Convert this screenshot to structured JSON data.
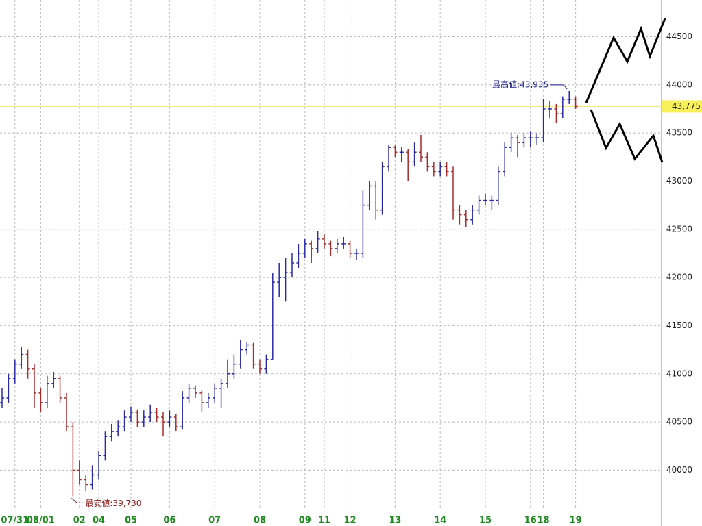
{
  "chart_data": {
    "type": "ohlc",
    "categories": [
      null,
      null,
      "07/31",
      null,
      null,
      null,
      "08/01",
      null,
      null,
      null,
      null,
      null,
      "02",
      null,
      null,
      "04",
      null,
      null,
      null,
      null,
      "05",
      null,
      null,
      null,
      null,
      null,
      "06",
      null,
      null,
      null,
      null,
      null,
      null,
      "07",
      null,
      null,
      null,
      null,
      null,
      null,
      "08",
      null,
      null,
      null,
      null,
      null,
      null,
      "09",
      null,
      null,
      "11",
      null,
      null,
      null,
      "12",
      null,
      null,
      null,
      null,
      null,
      null,
      "13",
      null,
      null,
      null,
      null,
      null,
      null,
      "14",
      null,
      null,
      null,
      null,
      null,
      null,
      "15",
      null,
      null,
      null,
      null,
      null,
      null,
      "16",
      null,
      "18",
      null,
      null,
      null,
      null,
      "19"
    ],
    "open": [
      40700,
      40750,
      40950,
      41100,
      41200,
      41050,
      40800,
      40700,
      40900,
      40950,
      40750,
      40450,
      40000,
      39900,
      39850,
      39950,
      40150,
      40350,
      40400,
      40450,
      40550,
      40600,
      40500,
      40550,
      40600,
      40550,
      40500,
      40550,
      40450,
      40750,
      40850,
      40800,
      40700,
      40750,
      40850,
      40900,
      41000,
      41100,
      41250,
      41300,
      41100,
      41050,
      41150,
      41950,
      42000,
      42050,
      42150,
      42250,
      42350,
      42300,
      42400,
      42350,
      42300,
      42350,
      42350,
      42250,
      42250,
      42750,
      42950,
      42700,
      43150,
      43350,
      43300,
      43300,
      43200,
      43300,
      43250,
      43150,
      43100,
      43150,
      43100,
      42700,
      42650,
      42600,
      42700,
      42800,
      42800,
      42800,
      43100,
      43350,
      43450,
      43400,
      43450,
      43450,
      43450,
      43750,
      43750,
      43700,
      43850,
      43850
    ],
    "high": [
      40850,
      41000,
      41150,
      41280,
      41250,
      41100,
      40850,
      40980,
      41020,
      40980,
      40800,
      40500,
      40100,
      39950,
      40050,
      40200,
      40400,
      40480,
      40520,
      40620,
      40660,
      40630,
      40620,
      40680,
      40650,
      40600,
      40620,
      40580,
      40820,
      40900,
      40880,
      40830,
      40800,
      40900,
      40950,
      41150,
      41200,
      41350,
      41330,
      41320,
      41150,
      41200,
      42050,
      42150,
      42200,
      42250,
      42350,
      42400,
      42380,
      42480,
      42450,
      42380,
      42400,
      42420,
      42380,
      42300,
      42900,
      43000,
      43000,
      43200,
      43380,
      43370,
      43350,
      43330,
      43400,
      43480,
      43300,
      43200,
      43200,
      43200,
      43150,
      42750,
      42700,
      42750,
      42850,
      42870,
      42850,
      43150,
      43400,
      43500,
      43480,
      43500,
      43520,
      43500,
      43850,
      43830,
      43800,
      43880,
      43935,
      43880
    ],
    "low": [
      40650,
      40700,
      40900,
      41050,
      40950,
      40650,
      40600,
      40650,
      40850,
      40700,
      40400,
      39730,
      39850,
      39780,
      39800,
      39900,
      40100,
      40300,
      40350,
      40400,
      40500,
      40450,
      40450,
      40500,
      40500,
      40350,
      40450,
      40400,
      40420,
      40700,
      40750,
      40600,
      40650,
      40700,
      40650,
      40850,
      40950,
      41050,
      41200,
      41050,
      41000,
      41000,
      41150,
      41800,
      41750,
      42000,
      42100,
      42200,
      42150,
      42250,
      42300,
      42220,
      42250,
      42300,
      42200,
      42180,
      42200,
      42700,
      42600,
      42650,
      43100,
      43250,
      43200,
      43000,
      43150,
      43200,
      43100,
      43050,
      43050,
      43050,
      42600,
      42550,
      42520,
      42550,
      42650,
      42750,
      42700,
      42750,
      43050,
      43300,
      43250,
      43350,
      43350,
      43380,
      43400,
      43650,
      43600,
      43650,
      43800,
      43750
    ],
    "close": [
      40750,
      40950,
      41100,
      41200,
      41050,
      40800,
      40700,
      40900,
      40950,
      40750,
      40450,
      40000,
      39900,
      39850,
      39950,
      40150,
      40350,
      40400,
      40450,
      40550,
      40600,
      40500,
      40550,
      40600,
      40550,
      40500,
      40550,
      40450,
      40750,
      40850,
      40800,
      40700,
      40750,
      40850,
      40900,
      41000,
      41100,
      41250,
      41300,
      41100,
      41050,
      41150,
      41950,
      42000,
      42050,
      42150,
      42250,
      42350,
      42300,
      42400,
      42350,
      42300,
      42350,
      42350,
      42250,
      42250,
      42750,
      42950,
      42700,
      43150,
      43350,
      43300,
      43300,
      43200,
      43300,
      43250,
      43150,
      43100,
      43150,
      43100,
      42700,
      42650,
      42600,
      42700,
      42800,
      42800,
      42800,
      43100,
      43350,
      43450,
      43400,
      43450,
      43450,
      43450,
      43750,
      43750,
      43700,
      43850,
      43850,
      43775
    ],
    "up_color": "#2a2aa8",
    "down_color": "#a82a2a",
    "ylim": [
      39420,
      44880
    ],
    "yticks": [
      40000,
      40500,
      41000,
      41500,
      42000,
      42500,
      43000,
      43500,
      44000,
      44500
    ],
    "grid": true,
    "last": {
      "value": 43775,
      "label": "43,775"
    },
    "annotations": [
      {
        "text": "最高値:43,935",
        "value": 43935
      },
      {
        "text": "最安値:39,730",
        "value": 39730
      }
    ]
  }
}
